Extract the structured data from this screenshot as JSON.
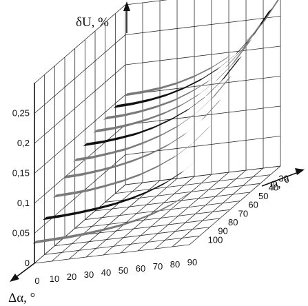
{
  "chart_data": {
    "type": "3d-surface-ribbons",
    "title": "",
    "z_axis_label": "δU, %",
    "x_axis_label": "Δα, °",
    "y_axis_label": "φ, °",
    "z_ticks": [
      "0",
      "0,05",
      "0,1",
      "0,15",
      "0,2",
      "0,25"
    ],
    "x_ticks": [
      "0",
      "10",
      "20",
      "30",
      "40",
      "50",
      "60",
      "70",
      "80",
      "90"
    ],
    "y_ticks": [
      "30",
      "40",
      "50",
      "60",
      "70",
      "80",
      "90",
      "100"
    ],
    "zlim": [
      0,
      0.3
    ],
    "xlim": [
      0,
      90
    ],
    "grid": true,
    "series_colors": [
      "#7a7a7a",
      "#111111",
      "#7a7a7a",
      "#7a7a7a",
      "#111111",
      "#7a7a7a",
      "#7a7a7a",
      "#7a7a7a",
      "#111111",
      "#7a7a7a"
    ],
    "series": [
      {
        "phi": 20,
        "x": [
          0,
          10,
          20,
          30,
          40,
          50,
          60,
          70,
          80,
          90
        ],
        "z": [
          0.15,
          0.151,
          0.154,
          0.159,
          0.167,
          0.178,
          0.193,
          0.214,
          0.243,
          0.283
        ]
      },
      {
        "phi": 30,
        "x": [
          0,
          10,
          20,
          30,
          40,
          50,
          60,
          70,
          80,
          90
        ],
        "z": [
          0.145,
          0.146,
          0.149,
          0.154,
          0.162,
          0.173,
          0.188,
          0.208,
          0.236,
          0.275
        ]
      },
      {
        "phi": 40,
        "x": [
          0,
          10,
          20,
          30,
          40,
          50,
          60,
          70,
          80,
          90
        ],
        "z": [
          0.14,
          0.141,
          0.144,
          0.149,
          0.156,
          0.167,
          0.181,
          0.201,
          0.228,
          0.265
        ]
      },
      {
        "phi": 50,
        "x": [
          0,
          10,
          20,
          30,
          40,
          50,
          60,
          70,
          80,
          90
        ],
        "z": [
          0.133,
          0.134,
          0.137,
          0.142,
          0.149,
          0.159,
          0.173,
          0.192,
          0.218,
          0.253
        ]
      },
      {
        "phi": 60,
        "x": [
          0,
          10,
          20,
          30,
          40,
          50,
          60,
          70,
          80,
          90
        ],
        "z": [
          0.125,
          0.126,
          0.129,
          0.133,
          0.14,
          0.15,
          0.163,
          0.181,
          0.206,
          0.239
        ]
      },
      {
        "phi": 70,
        "x": [
          0,
          10,
          20,
          30,
          40,
          50,
          60,
          70,
          80,
          90
        ],
        "z": [
          0.114,
          0.115,
          0.118,
          0.122,
          0.129,
          0.138,
          0.15,
          0.167,
          0.19,
          0.221
        ]
      },
      {
        "phi": 80,
        "x": [
          0,
          10,
          20,
          30,
          40,
          50,
          60,
          70,
          80,
          90
        ],
        "z": [
          0.1,
          0.101,
          0.104,
          0.108,
          0.114,
          0.122,
          0.133,
          0.148,
          0.169,
          0.197
        ]
      },
      {
        "phi": 90,
        "x": [
          0,
          10,
          20,
          30,
          40,
          50,
          60,
          70,
          80,
          90
        ],
        "z": [
          0.083,
          0.084,
          0.086,
          0.09,
          0.095,
          0.102,
          0.112,
          0.125,
          0.143,
          0.168
        ]
      },
      {
        "phi": 100,
        "x": [
          0,
          10,
          20,
          30,
          40,
          50,
          60,
          70,
          80,
          90
        ],
        "z": [
          0.06,
          0.061,
          0.063,
          0.066,
          0.07,
          0.076,
          0.084,
          0.095,
          0.11,
          0.131
        ]
      },
      {
        "phi": 110,
        "x": [
          0,
          10,
          20,
          30,
          40,
          50,
          60,
          70,
          80,
          90
        ],
        "z": [
          0.035,
          0.036,
          0.037,
          0.039,
          0.042,
          0.046,
          0.052,
          0.06,
          0.071,
          0.086
        ]
      }
    ]
  }
}
